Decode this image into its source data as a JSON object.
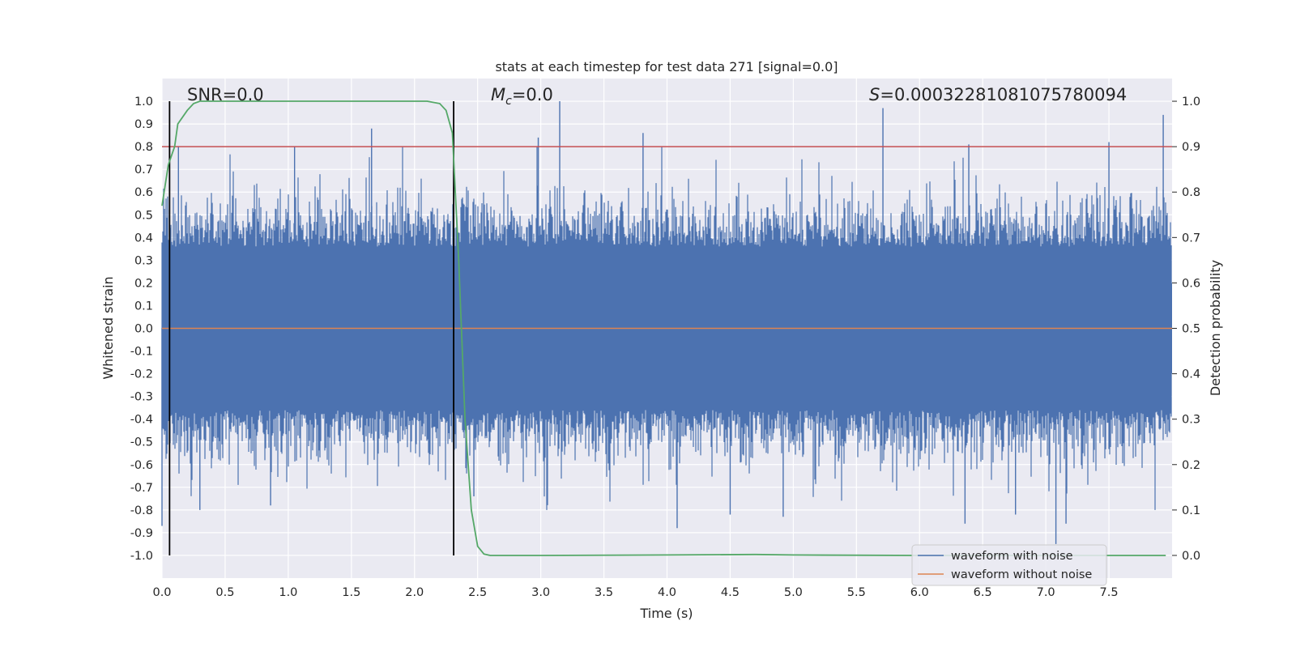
{
  "chart_data": {
    "type": "line",
    "title": "stats at each timestep for test data 271 [signal=0.0]",
    "xlabel": "Time (s)",
    "ylabel": "Whitened strain",
    "ylabel_right": "Detection probability",
    "xlim": [
      0.0,
      8.0
    ],
    "ylim": [
      -1.1,
      1.1
    ],
    "ylim_right": [
      -0.05,
      1.05
    ],
    "x_ticks": [
      "0.0",
      "0.5",
      "1.0",
      "1.5",
      "2.0",
      "2.5",
      "3.0",
      "3.5",
      "4.0",
      "4.5",
      "5.0",
      "5.5",
      "6.0",
      "6.5",
      "7.0",
      "7.5"
    ],
    "y_ticks": [
      "1.0",
      "0.9",
      "0.8",
      "0.7",
      "0.6",
      "0.5",
      "0.4",
      "0.3",
      "0.2",
      "0.1",
      "0.0",
      "-0.1",
      "-0.2",
      "-0.3",
      "-0.4",
      "-0.5",
      "-0.6",
      "-0.7",
      "-0.8",
      "-0.9",
      "-1.0"
    ],
    "y_ticks_right": [
      "1.0",
      "0.9",
      "0.8",
      "0.7",
      "0.6",
      "0.5",
      "0.4",
      "0.3",
      "0.2",
      "0.1",
      "0.0"
    ],
    "grid": true,
    "legend_position": "lower-right",
    "annotations": {
      "snr": "SNR=0.0",
      "mc_symbol": "M",
      "mc_subscript": "c",
      "mc_value": "=0.0",
      "s_symbol": "S",
      "s_value": "=0.00032281081075780094"
    },
    "series": [
      {
        "name": "waveform with noise",
        "color": "#4c72b0",
        "axis": "left",
        "description": "dense noise, roughly within ±0.6 with spikes to ±1.0",
        "typical_amplitude": 0.5,
        "spikes": [
          {
            "x": 1.66,
            "y": 0.88
          },
          {
            "x": 1.05,
            "y": 0.8
          },
          {
            "x": 0.13,
            "y": 0.8
          },
          {
            "x": 3.15,
            "y": 1.0
          },
          {
            "x": 2.98,
            "y": 0.84
          },
          {
            "x": 3.81,
            "y": 0.86
          },
          {
            "x": 5.71,
            "y": 0.97
          },
          {
            "x": 6.39,
            "y": 0.81
          },
          {
            "x": 7.93,
            "y": 0.94
          },
          {
            "x": 7.5,
            "y": 0.82
          },
          {
            "x": 0.0,
            "y": -0.87
          },
          {
            "x": 0.3,
            "y": -0.8
          },
          {
            "x": 0.86,
            "y": -0.78
          },
          {
            "x": 4.08,
            "y": -0.88
          },
          {
            "x": 4.5,
            "y": -0.82
          },
          {
            "x": 4.92,
            "y": -0.83
          },
          {
            "x": 6.36,
            "y": -0.86
          },
          {
            "x": 6.76,
            "y": -0.82
          },
          {
            "x": 7.08,
            "y": -0.95
          },
          {
            "x": 7.16,
            "y": -0.86
          },
          {
            "x": 2.47,
            "y": -0.74
          }
        ]
      },
      {
        "name": "waveform without noise",
        "color": "#dd8452",
        "axis": "left",
        "x": [
          0.0,
          8.0
        ],
        "y": [
          0.0,
          0.0
        ]
      },
      {
        "name": "",
        "color": "#55a868",
        "axis": "right",
        "x": [
          0.0,
          0.05,
          0.1,
          0.125,
          0.2,
          0.25,
          0.3,
          0.35,
          0.5,
          1.0,
          1.5,
          2.0,
          2.1,
          2.2,
          2.25,
          2.3,
          2.35,
          2.4,
          2.45,
          2.5,
          2.55,
          2.6,
          3.0,
          4.0,
          4.7,
          5.0,
          6.0,
          7.0,
          7.5,
          7.95
        ],
        "y": [
          0.77,
          0.86,
          0.9,
          0.95,
          0.98,
          0.995,
          1.0,
          1.0,
          1.0,
          1.0,
          1.0,
          1.0,
          1.0,
          0.995,
          0.98,
          0.93,
          0.65,
          0.3,
          0.1,
          0.02,
          0.003,
          0.0,
          0.0,
          0.001,
          0.002,
          0.001,
          0.0,
          0.0,
          0.0,
          0.0
        ]
      }
    ],
    "threshold_line": {
      "axis": "right",
      "value": 0.9,
      "color": "#c44e52"
    },
    "vertical_markers": {
      "x": [
        0.06,
        2.31
      ],
      "y_range": [
        -1.0,
        1.0
      ],
      "color": "#000000"
    }
  }
}
